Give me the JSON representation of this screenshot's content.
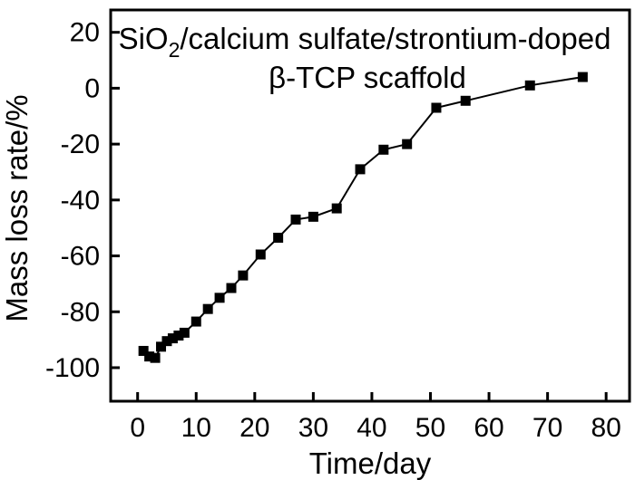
{
  "chart_data": {
    "type": "line",
    "title": "SiO2/calcium sulfate/strontium-doped β-TCP scaffold",
    "xlabel": "Time/day",
    "ylabel": "Mass loss rate/%",
    "xlim": [
      -4.6,
      84
    ],
    "ylim": [
      -112,
      28
    ],
    "xticks": [
      0,
      10,
      20,
      30,
      40,
      50,
      60,
      70,
      80
    ],
    "yticks": [
      20,
      0,
      -20,
      -40,
      -60,
      -80,
      -100
    ],
    "legend": "none",
    "grid": false,
    "marker": "filled-square",
    "line_color": "#000000",
    "marker_color": "#000000",
    "background_color": "#ffffff",
    "series": [
      {
        "name": "mass loss rate",
        "x": [
          1,
          2,
          3,
          4,
          5,
          6,
          7,
          8,
          10,
          12,
          14,
          16,
          18,
          21,
          24,
          27,
          30,
          34,
          38,
          42,
          46,
          51,
          56,
          67,
          76
        ],
        "y": [
          -94,
          -96,
          -96.5,
          -92.5,
          -90.5,
          -89.5,
          -88.5,
          -87.5,
          -83.5,
          -79,
          -75,
          -71.5,
          -67,
          -59.5,
          -53.5,
          -47,
          -46,
          -43,
          -29,
          -22,
          -20,
          -7,
          -4.5,
          1,
          4
        ]
      }
    ]
  },
  "title": {
    "part1": "SiO",
    "subscript": "2",
    "part2": "/calcium sulfate/strontium-doped",
    "line2": "β-TCP scaffold"
  },
  "axes": {
    "x_label": "Time/day",
    "y_label": "Mass loss rate/%"
  }
}
